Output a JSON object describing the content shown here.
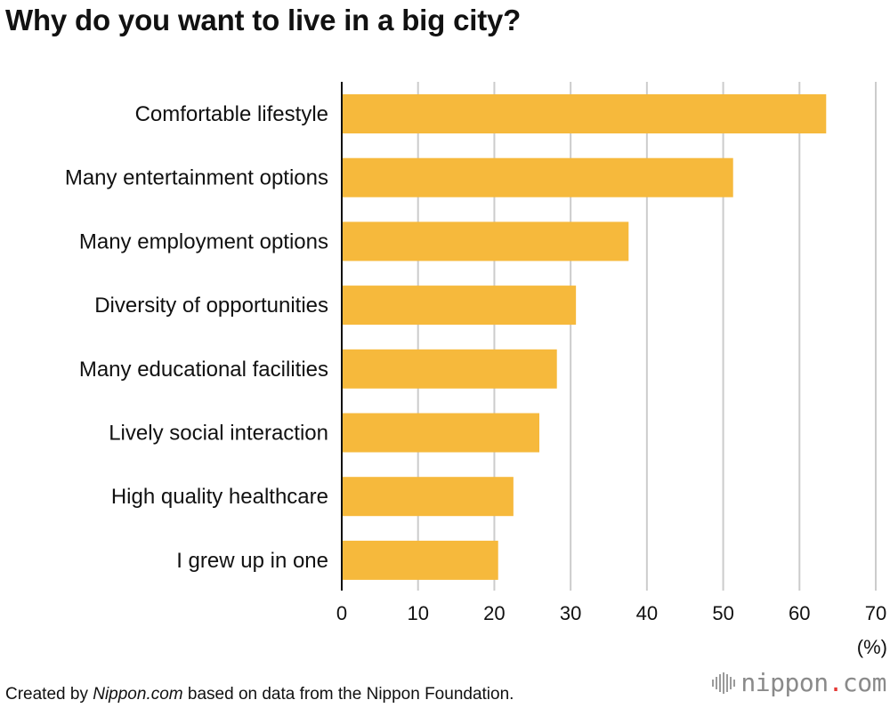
{
  "chart_data": {
    "type": "bar",
    "orientation": "horizontal",
    "title": "Why do you want to live in a big city?",
    "categories": [
      "Comfortable lifestyle",
      "Many entertainment options",
      "Many employment options",
      "Diversity of opportunities",
      "Many educational facilities",
      "Lively social interaction",
      "High quality healthcare",
      "I grew up in one"
    ],
    "values": [
      63.5,
      51.3,
      37.6,
      30.7,
      28.2,
      25.9,
      22.5,
      20.5
    ],
    "xlim": [
      0,
      70
    ],
    "xticks": [
      0,
      10,
      20,
      30,
      40,
      50,
      60,
      70
    ],
    "xlabel": "(%)",
    "ylabel": "",
    "grid": true,
    "bar_color": "#f6b93c",
    "grid_color": "#cccccc"
  },
  "footer": {
    "prefix": "Created by ",
    "site": "Nippon.com",
    "suffix": " based on data from the Nippon Foundation."
  },
  "logo": {
    "name": "nippon",
    "dot": ".",
    "tld": "com",
    "dot_color": "#e53935"
  }
}
